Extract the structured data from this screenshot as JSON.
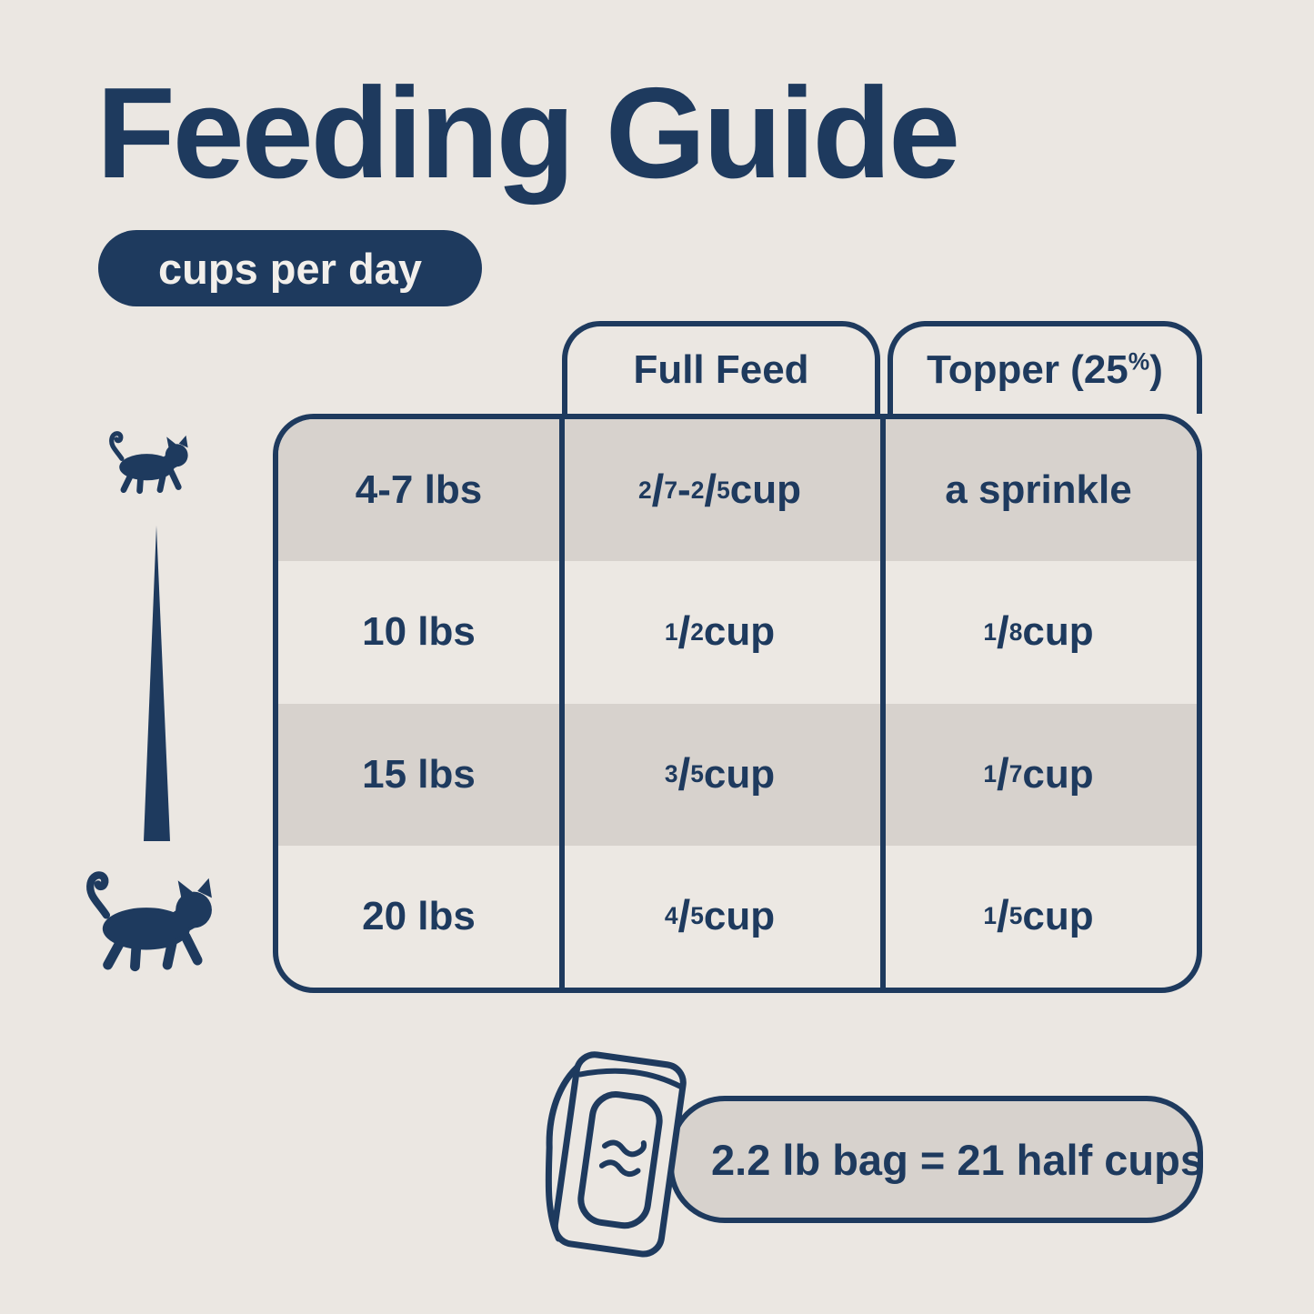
{
  "colors": {
    "navy": "#1e3a5e",
    "background": "#ebe7e2",
    "row_stripe": "#d7d2cd",
    "pill_text": "#f2efeb"
  },
  "header": {
    "title": "Feeding Guide",
    "unit_pill": "cups per day"
  },
  "chart_data": {
    "type": "table",
    "title": "Feeding Guide",
    "subtitle": "cups per day",
    "column_headers": [
      "Full Feed",
      "Topper (25%)"
    ],
    "rows": [
      {
        "weight": "4-7 lbs",
        "full_feed": "2/7 - 2/5 cup",
        "topper": "a sprinkle"
      },
      {
        "weight": "10 lbs",
        "full_feed": "1/2 cup",
        "topper": "1/8 cup"
      },
      {
        "weight": "15 lbs",
        "full_feed": "3/5 cup",
        "topper": "1/7 cup"
      },
      {
        "weight": "20 lbs",
        "full_feed": "4/5 cup",
        "topper": "1/5 cup"
      }
    ],
    "note": "2.2 lb bag = 21 half cups",
    "legend": "small cat to large cat weight scale"
  },
  "footer": {
    "bag_note": "2.2 lb bag = 21 half cups"
  },
  "icons": {
    "small_cat": "small-cat-icon",
    "size_taper": "cat-size-taper-icon",
    "large_cat": "large-cat-icon",
    "food_bag": "food-bag-icon"
  }
}
